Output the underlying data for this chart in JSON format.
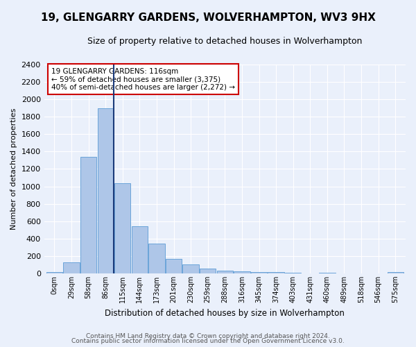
{
  "title": "19, GLENGARRY GARDENS, WOLVERHAMPTON, WV3 9HX",
  "subtitle": "Size of property relative to detached houses in Wolverhampton",
  "xlabel": "Distribution of detached houses by size in Wolverhampton",
  "ylabel": "Number of detached properties",
  "categories": [
    "0sqm",
    "29sqm",
    "58sqm",
    "86sqm",
    "115sqm",
    "144sqm",
    "173sqm",
    "201sqm",
    "230sqm",
    "259sqm",
    "288sqm",
    "316sqm",
    "345sqm",
    "374sqm",
    "403sqm",
    "431sqm",
    "460sqm",
    "489sqm",
    "518sqm",
    "546sqm",
    "575sqm"
  ],
  "values": [
    15,
    125,
    1340,
    1900,
    1040,
    540,
    340,
    165,
    105,
    55,
    30,
    25,
    15,
    12,
    10,
    0,
    10,
    0,
    0,
    0,
    15
  ],
  "bar_color": "#aec6e8",
  "bar_edge_color": "#5b9bd5",
  "vline_color": "#1a3a7a",
  "annotation_text": "19 GLENGARRY GARDENS: 116sqm\n← 59% of detached houses are smaller (3,375)\n40% of semi-detached houses are larger (2,272) →",
  "annotation_box_color": "#ffffff",
  "annotation_box_edge": "#cc0000",
  "ylim": [
    0,
    2400
  ],
  "yticks": [
    0,
    200,
    400,
    600,
    800,
    1000,
    1200,
    1400,
    1600,
    1800,
    2000,
    2200,
    2400
  ],
  "footer1": "Contains HM Land Registry data © Crown copyright and database right 2024.",
  "footer2": "Contains public sector information licensed under the Open Government Licence v3.0.",
  "background_color": "#eaf0fb",
  "plot_background": "#eaf0fb",
  "grid_color": "#ffffff",
  "title_fontsize": 11,
  "subtitle_fontsize": 9,
  "ylabel_fontsize": 8,
  "xlabel_fontsize": 8.5,
  "tick_fontsize": 8,
  "xtick_fontsize": 7,
  "footer_fontsize": 6.5,
  "annot_fontsize": 7.5
}
